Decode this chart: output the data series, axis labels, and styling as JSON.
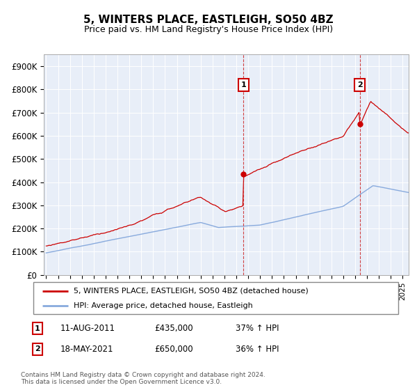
{
  "title": "5, WINTERS PLACE, EASTLEIGH, SO50 4BZ",
  "subtitle": "Price paid vs. HM Land Registry's House Price Index (HPI)",
  "ylabel_ticks": [
    "£0",
    "£100K",
    "£200K",
    "£300K",
    "£400K",
    "£500K",
    "£600K",
    "£700K",
    "£800K",
    "£900K"
  ],
  "ytick_values": [
    0,
    100000,
    200000,
    300000,
    400000,
    500000,
    600000,
    700000,
    800000,
    900000
  ],
  "ylim": [
    0,
    950000
  ],
  "xlim_start": 1994.8,
  "xlim_end": 2025.5,
  "legend_line1": "5, WINTERS PLACE, EASTLEIGH, SO50 4BZ (detached house)",
  "legend_line2": "HPI: Average price, detached house, Eastleigh",
  "annotation1_label": "1",
  "annotation1_date": "11-AUG-2011",
  "annotation1_price": "£435,000",
  "annotation1_pct": "37% ↑ HPI",
  "annotation2_label": "2",
  "annotation2_date": "18-MAY-2021",
  "annotation2_price": "£650,000",
  "annotation2_pct": "36% ↑ HPI",
  "footer": "Contains HM Land Registry data © Crown copyright and database right 2024.\nThis data is licensed under the Open Government Licence v3.0.",
  "line1_color": "#cc0000",
  "line2_color": "#88aadd",
  "vline1_x": 2011.6,
  "vline2_x": 2021.38,
  "marker1_x": 2011.6,
  "marker1_y": 435000,
  "marker2_x": 2021.38,
  "marker2_y": 650000,
  "background_color": "#e8eef8",
  "ann_box_color": "#cc0000"
}
